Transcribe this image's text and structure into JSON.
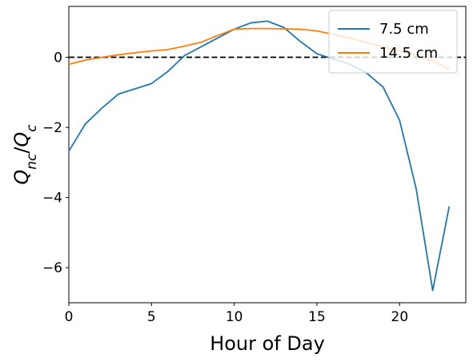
{
  "chart_data": {
    "type": "line",
    "title": "",
    "xlabel": "Hour of Day",
    "ylabel": "Q_nc/Q_c",
    "xlim": [
      0,
      24
    ],
    "ylim": [
      -7.0,
      1.45
    ],
    "xticks": [
      0,
      5,
      10,
      15,
      20
    ],
    "yticks": [
      -6,
      -4,
      -2,
      0
    ],
    "legend_position": "top-right",
    "reference_line": {
      "y": 0,
      "style": "dashed",
      "color": "#000000"
    },
    "x": [
      0,
      1,
      2,
      3,
      4,
      5,
      6,
      7,
      8,
      9,
      10,
      11,
      12,
      13,
      14,
      15,
      16,
      17,
      18,
      19,
      20,
      21,
      22,
      23
    ],
    "series": [
      {
        "name": "7.5 cm",
        "color": "#1f77b4",
        "values": [
          -2.68,
          -1.9,
          -1.45,
          -1.05,
          -0.9,
          -0.75,
          -0.4,
          0.05,
          0.3,
          0.55,
          0.8,
          0.98,
          1.03,
          0.85,
          0.45,
          0.1,
          -0.05,
          -0.2,
          -0.45,
          -0.85,
          -1.8,
          -3.75,
          -6.65,
          -4.25
        ]
      },
      {
        "name": "14.5 cm",
        "color": "#ff7f0e",
        "values": [
          -0.2,
          -0.08,
          0.0,
          0.07,
          0.13,
          0.18,
          0.22,
          0.32,
          0.43,
          0.62,
          0.8,
          0.82,
          0.82,
          0.81,
          0.8,
          0.75,
          0.65,
          0.55,
          0.42,
          0.3,
          0.18,
          0.05,
          -0.1,
          -0.35
        ]
      }
    ]
  }
}
